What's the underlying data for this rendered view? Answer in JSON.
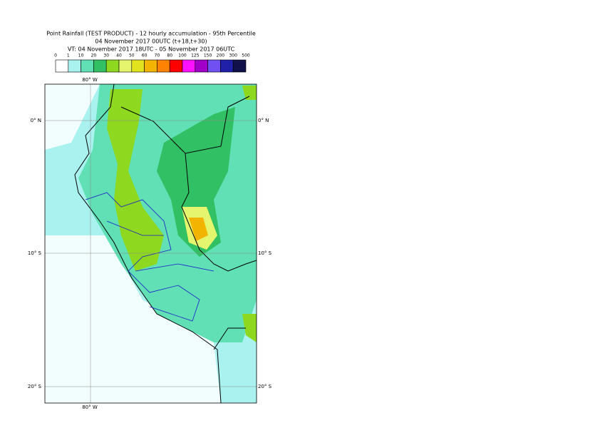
{
  "header": {
    "title": "Point Rainfall (TEST PRODUCT) - 12 hourly accumulation - 95th Percentile",
    "subtitle": "04 November 2017 00UTC (t+18,t+30)",
    "valid_time": "VT: 04 November 2017 18UTC - 05 November 2017 06UTC"
  },
  "legend": {
    "labels": [
      "0",
      "1",
      "10",
      "20",
      "30",
      "40",
      "50",
      "60",
      "70",
      "80",
      "100",
      "125",
      "150",
      "200",
      "300",
      "500"
    ],
    "colors": [
      "#ffffff",
      "#aaf2f0",
      "#60e0b4",
      "#32c064",
      "#8ed820",
      "#e6f56e",
      "#e2e21e",
      "#f2b400",
      "#ff8200",
      "#ff0000",
      "#ff10ff",
      "#a000c8",
      "#7050f0",
      "#2020a8",
      "#10104a"
    ]
  },
  "map": {
    "lon_labels": [
      "80° W",
      "80° W"
    ],
    "lat_labels": [
      "0° N",
      "10° S",
      "20° S"
    ]
  }
}
